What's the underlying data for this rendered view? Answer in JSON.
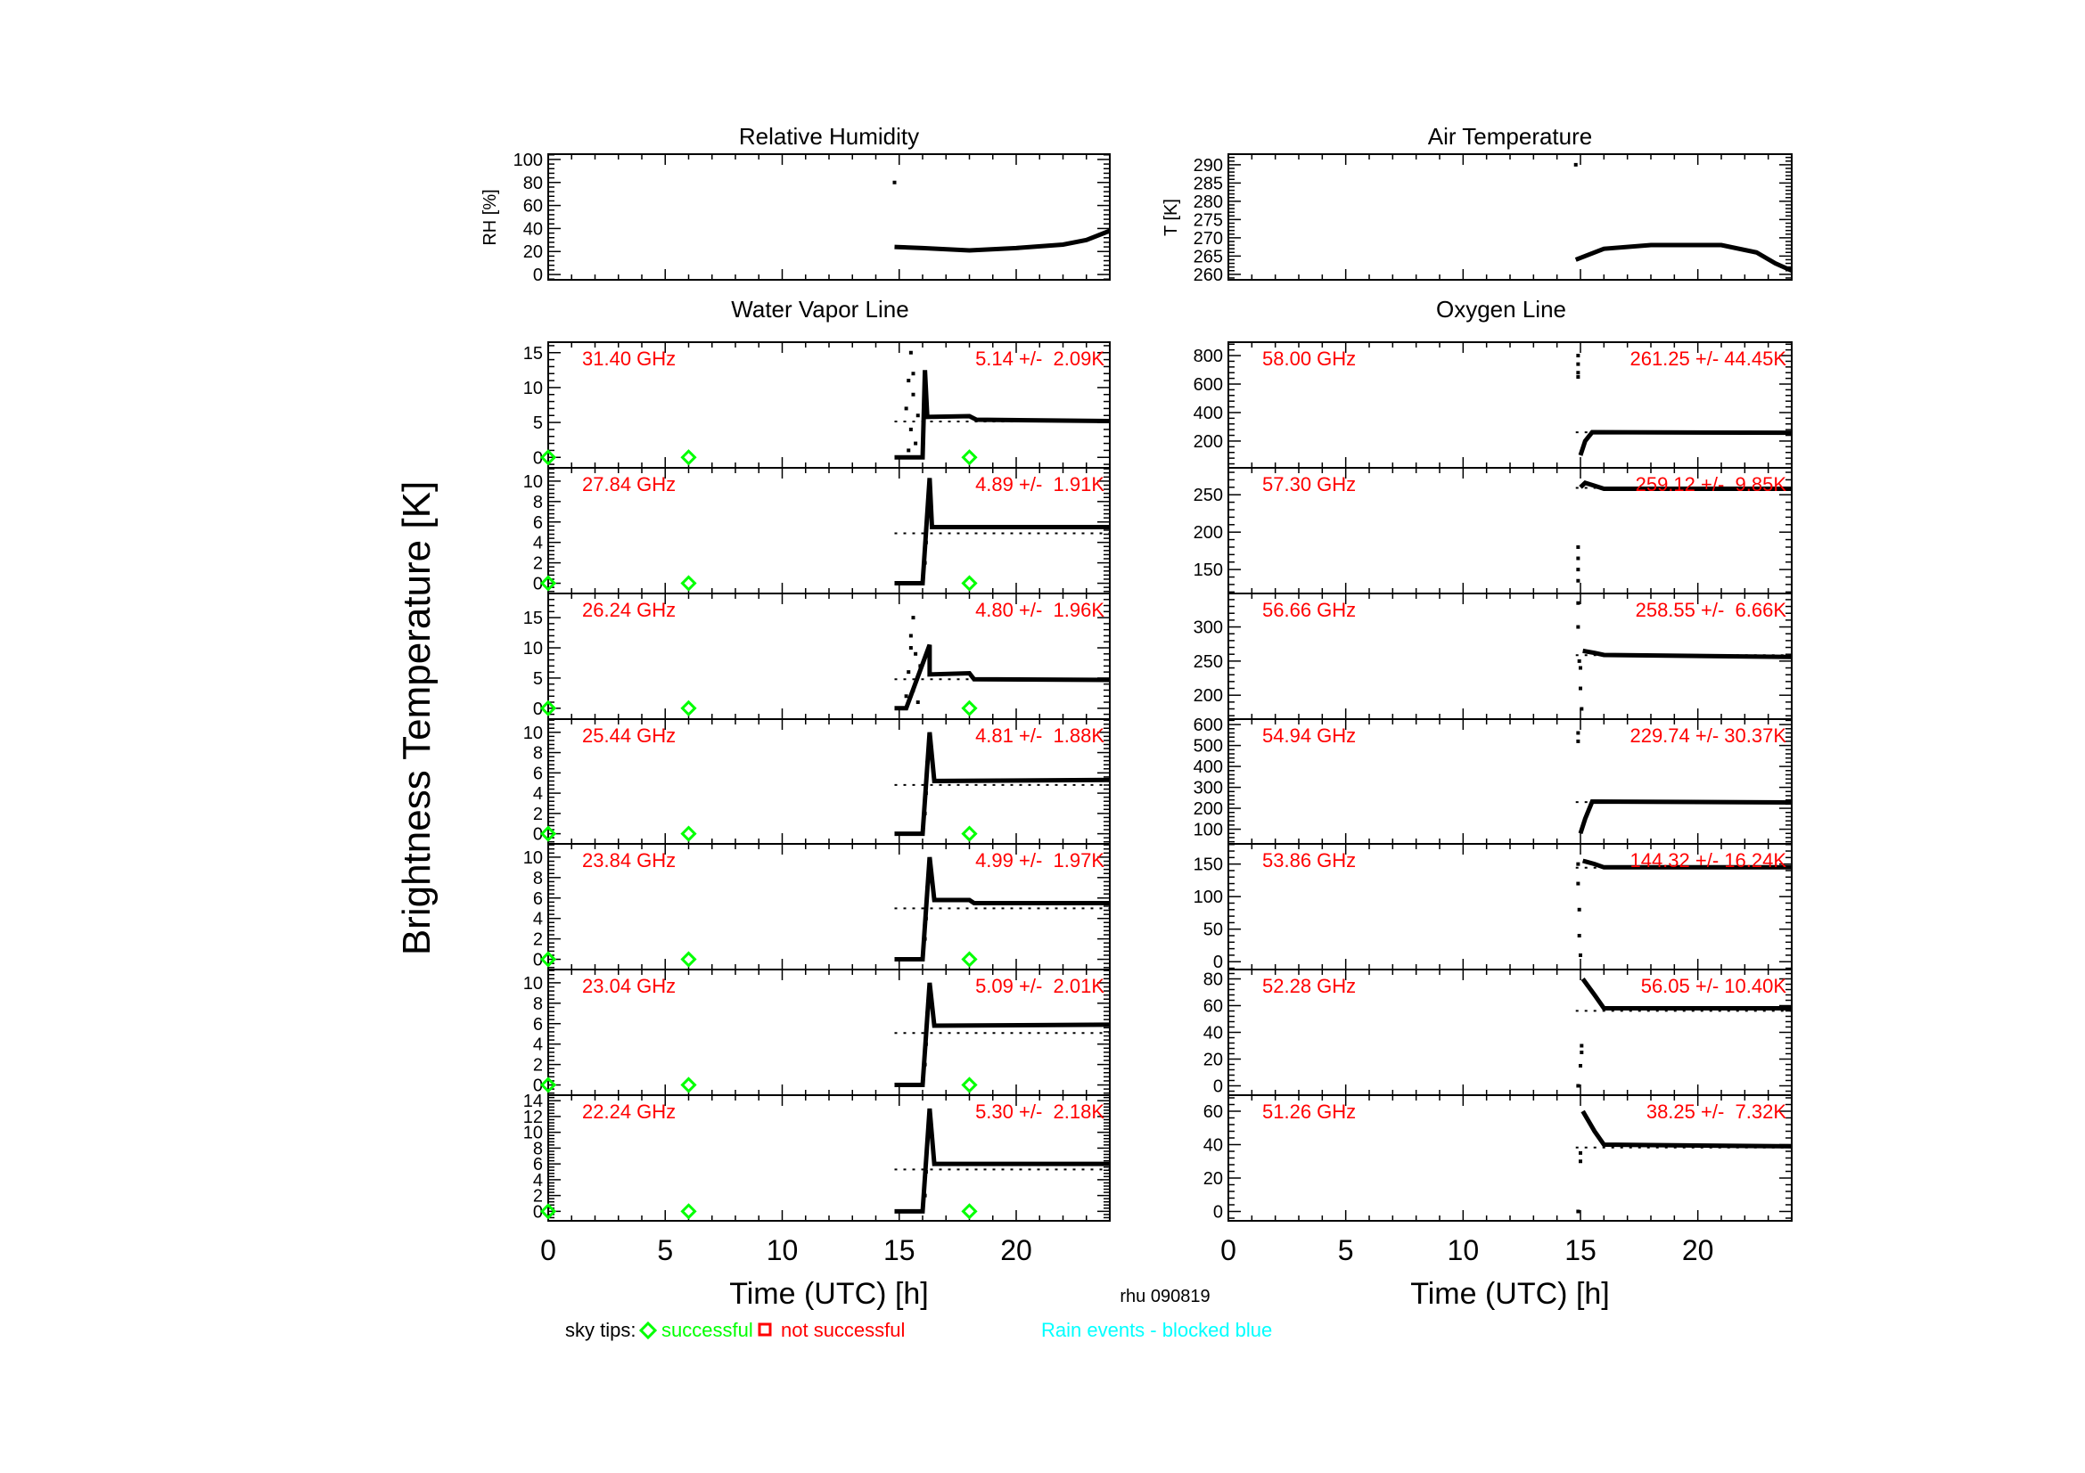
{
  "footer": {
    "station": "rhu 090819",
    "sky_tips_label": "sky tips:",
    "successful_label": "successful",
    "not_successful_label": "not successful",
    "rain_label": "Rain events - blocked blue",
    "colors": {
      "successful": "#00ff00",
      "not_successful": "#ff0000",
      "rain": "#00ffff",
      "annotation": "#ff0000"
    }
  },
  "ylabel_main": "Brightness Temperature [K]",
  "chart_data": [
    {
      "id": "rh",
      "type": "line",
      "title": "Relative Humidity",
      "ylabel": "RH [%]",
      "ylim": [
        -4.6,
        104.6
      ],
      "yticks": [
        0,
        20,
        40,
        60,
        80,
        100
      ],
      "xlim": [
        0,
        24
      ],
      "points": [
        [
          14.8,
          24
        ],
        [
          16,
          23
        ],
        [
          18,
          21
        ],
        [
          20,
          23
        ],
        [
          22,
          26
        ],
        [
          23,
          30
        ],
        [
          24,
          38
        ]
      ],
      "dots": [
        [
          14.8,
          80
        ]
      ]
    },
    {
      "id": "t",
      "type": "line",
      "title": "Air Temperature",
      "ylabel": "T [K]",
      "ylim": [
        258.5,
        292.9
      ],
      "yticks": [
        260,
        265,
        270,
        275,
        280,
        285,
        290
      ],
      "xlim": [
        0,
        24
      ],
      "points": [
        [
          14.8,
          264
        ],
        [
          16,
          267
        ],
        [
          18,
          268
        ],
        [
          21,
          268
        ],
        [
          22.5,
          266
        ],
        [
          23.3,
          263
        ],
        [
          24,
          261
        ]
      ],
      "dots": [
        [
          14.8,
          290
        ]
      ]
    },
    {
      "group": "Water Vapor Line",
      "xlabel": "Time (UTC) [h]",
      "xlim": [
        0,
        24
      ],
      "xticks": [
        0,
        5,
        10,
        15,
        20
      ],
      "sky_tips": [
        0,
        6,
        18
      ],
      "channels": [
        {
          "freq": "31.40 GHz",
          "stats": "5.14 +/-  2.09K",
          "mean": 5.14,
          "ylim": [
            -1.5,
            16.5
          ],
          "yticks": [
            0,
            5,
            10,
            15
          ],
          "points": [
            [
              14.8,
              0
            ],
            [
              16,
              0
            ],
            [
              16.1,
              12.5
            ],
            [
              16.2,
              5.8
            ],
            [
              18,
              5.9
            ],
            [
              18.3,
              5.4
            ],
            [
              24,
              5.2
            ]
          ],
          "dots": [
            [
              15.5,
              15
            ],
            [
              15.4,
              11
            ],
            [
              15.6,
              9
            ],
            [
              15.3,
              7
            ],
            [
              15.5,
              4
            ],
            [
              15.7,
              2
            ],
            [
              15.4,
              1
            ],
            [
              15.8,
              6
            ],
            [
              15.6,
              12
            ]
          ]
        },
        {
          "freq": "27.84 GHz",
          "stats": "4.89 +/-  1.91K",
          "mean": 4.89,
          "ylim": [
            -1,
            11.3
          ],
          "yticks": [
            0,
            2,
            4,
            6,
            8,
            10
          ],
          "points": [
            [
              14.8,
              0
            ],
            [
              16,
              0
            ],
            [
              16.3,
              10.3
            ],
            [
              16.4,
              5.5
            ],
            [
              24,
              5.5
            ]
          ],
          "dots": [
            [
              16.1,
              2
            ],
            [
              16.15,
              4
            ],
            [
              16.2,
              7
            ]
          ]
        },
        {
          "freq": "26.24 GHz",
          "stats": "4.80 +/-  1.96K",
          "mean": 4.8,
          "ylim": [
            -1.8,
            19
          ],
          "yticks": [
            0,
            5,
            10,
            15
          ],
          "points": [
            [
              14.8,
              0
            ],
            [
              15.3,
              0
            ],
            [
              16.3,
              10.5
            ],
            [
              16.3,
              5.6
            ],
            [
              18,
              5.8
            ],
            [
              18.2,
              4.8
            ],
            [
              24,
              4.7
            ]
          ],
          "dots": [
            [
              15.6,
              15
            ],
            [
              15.5,
              12
            ],
            [
              15.7,
              9
            ],
            [
              15.4,
              6
            ],
            [
              15.6,
              3
            ],
            [
              15.8,
              1
            ],
            [
              15.5,
              10
            ],
            [
              15.9,
              7
            ],
            [
              15.3,
              2
            ]
          ]
        },
        {
          "freq": "25.44 GHz",
          "stats": "4.81 +/-  1.88K",
          "mean": 4.81,
          "ylim": [
            -1,
            11.3
          ],
          "yticks": [
            0,
            2,
            4,
            6,
            8,
            10
          ],
          "points": [
            [
              14.8,
              0
            ],
            [
              16,
              0
            ],
            [
              16.3,
              10
            ],
            [
              16.5,
              5.2
            ],
            [
              24,
              5.3
            ]
          ],
          "dots": [
            [
              16.1,
              2
            ],
            [
              16.15,
              4
            ],
            [
              16.2,
              7
            ]
          ]
        },
        {
          "freq": "23.84 GHz",
          "stats": "4.99 +/-  1.97K",
          "mean": 4.99,
          "ylim": [
            -1,
            11.3
          ],
          "yticks": [
            0,
            2,
            4,
            6,
            8,
            10
          ],
          "points": [
            [
              14.8,
              0
            ],
            [
              16,
              0
            ],
            [
              16.3,
              10
            ],
            [
              16.5,
              5.8
            ],
            [
              18,
              5.8
            ],
            [
              18.2,
              5.5
            ],
            [
              24,
              5.5
            ]
          ],
          "dots": [
            [
              16.1,
              2
            ],
            [
              16.15,
              4
            ],
            [
              16.2,
              7
            ]
          ]
        },
        {
          "freq": "23.04 GHz",
          "stats": "5.09 +/-  2.01K",
          "mean": 5.09,
          "ylim": [
            -1,
            11.3
          ],
          "yticks": [
            0,
            2,
            4,
            6,
            8,
            10
          ],
          "points": [
            [
              14.8,
              0
            ],
            [
              16,
              0
            ],
            [
              16.3,
              10
            ],
            [
              16.5,
              5.8
            ],
            [
              24,
              5.9
            ]
          ],
          "dots": [
            [
              16.1,
              2
            ],
            [
              16.15,
              4
            ],
            [
              16.2,
              7
            ]
          ]
        },
        {
          "freq": "22.24 GHz",
          "stats": "5.30 +/-  2.18K",
          "mean": 5.3,
          "ylim": [
            -1.2,
            14.7
          ],
          "yticks": [
            0,
            2,
            4,
            6,
            8,
            10,
            12,
            14
          ],
          "points": [
            [
              14.8,
              0
            ],
            [
              16,
              0
            ],
            [
              16.3,
              13
            ],
            [
              16.5,
              6
            ],
            [
              24,
              6
            ]
          ],
          "dots": [
            [
              16.1,
              2
            ],
            [
              16.15,
              5
            ],
            [
              16.2,
              9
            ]
          ]
        }
      ]
    },
    {
      "group": "Oxygen Line",
      "xlabel": "Time (UTC) [h]",
      "xlim": [
        0,
        24
      ],
      "xticks": [
        0,
        5,
        10,
        15,
        20
      ],
      "channels": [
        {
          "freq": "58.00 GHz",
          "stats": "261.25 +/- 44.45K",
          "mean": 261.25,
          "ylim": [
            12,
            894
          ],
          "yticks": [
            200,
            400,
            600,
            800
          ],
          "points": [
            [
              15.0,
              100
            ],
            [
              15.2,
              200
            ],
            [
              15.5,
              262
            ],
            [
              24,
              258
            ]
          ],
          "dots": [
            [
              14.9,
              800
            ],
            [
              14.9,
              740
            ],
            [
              14.9,
              680
            ],
            [
              14.9,
              650
            ]
          ]
        },
        {
          "freq": "57.30 GHz",
          "stats": "259.12 +/-  9.85K",
          "mean": 259.12,
          "ylim": [
            118,
            286
          ],
          "yticks": [
            150,
            200,
            250
          ],
          "points": [
            [
              15.0,
              260
            ],
            [
              15.2,
              266
            ],
            [
              15.6,
              262
            ],
            [
              16,
              258
            ],
            [
              24,
              258
            ]
          ],
          "dots": [
            [
              14.9,
              180
            ],
            [
              14.9,
              165
            ],
            [
              14.9,
              150
            ],
            [
              14.9,
              135
            ]
          ]
        },
        {
          "freq": "56.66 GHz",
          "stats": "258.55 +/-  6.66K",
          "mean": 258.55,
          "ylim": [
            165,
            349
          ],
          "yticks": [
            200,
            250,
            300
          ],
          "points": [
            [
              15.1,
              265
            ],
            [
              15.6,
              262
            ],
            [
              16,
              259
            ],
            [
              24,
              256
            ]
          ],
          "dots": [
            [
              14.9,
              335
            ],
            [
              14.9,
              300
            ],
            [
              14.95,
              250
            ],
            [
              15.0,
              240
            ],
            [
              15.0,
              210
            ],
            [
              15.05,
              180
            ]
          ]
        },
        {
          "freq": "54.94 GHz",
          "stats": "229.74 +/- 30.37K",
          "mean": 229.74,
          "ylim": [
            30,
            626
          ],
          "yticks": [
            100,
            200,
            300,
            400,
            500,
            600
          ],
          "points": [
            [
              15.0,
              80
            ],
            [
              15.2,
              150
            ],
            [
              15.5,
              232
            ],
            [
              24,
              228
            ]
          ],
          "dots": [
            [
              14.9,
              560
            ],
            [
              14.9,
              520
            ]
          ]
        },
        {
          "freq": "53.86 GHz",
          "stats": "144.32 +/- 16.24K",
          "mean": 144.32,
          "ylim": [
            -12,
            181
          ],
          "yticks": [
            0,
            50,
            100,
            150
          ],
          "points": [
            [
              15.1,
              155
            ],
            [
              15.6,
              150
            ],
            [
              16,
              145
            ],
            [
              24,
              145
            ]
          ],
          "dots": [
            [
              14.9,
              150
            ],
            [
              14.9,
              120
            ],
            [
              14.95,
              80
            ],
            [
              14.95,
              40
            ],
            [
              15.0,
              10
            ]
          ]
        },
        {
          "freq": "52.28 GHz",
          "stats": "56.05 +/- 10.40K",
          "mean": 56.05,
          "ylim": [
            -7,
            87
          ],
          "yticks": [
            0,
            20,
            40,
            60,
            80
          ],
          "points": [
            [
              15.1,
              80
            ],
            [
              15.6,
              68
            ],
            [
              16,
              58
            ],
            [
              24,
              58
            ]
          ],
          "dots": [
            [
              14.9,
              0
            ],
            [
              15.0,
              15
            ],
            [
              15.05,
              25
            ],
            [
              15.05,
              30
            ]
          ]
        },
        {
          "freq": "51.26 GHz",
          "stats": "38.25 +/-  7.32K",
          "mean": 38.25,
          "ylim": [
            -5.6,
            69.6
          ],
          "yticks": [
            0,
            20,
            40,
            60
          ],
          "points": [
            [
              15.1,
              60
            ],
            [
              15.6,
              48
            ],
            [
              16,
              40
            ],
            [
              24,
              39
            ]
          ],
          "dots": [
            [
              14.9,
              0
            ],
            [
              15.0,
              30
            ],
            [
              15.0,
              35
            ]
          ]
        }
      ]
    }
  ]
}
